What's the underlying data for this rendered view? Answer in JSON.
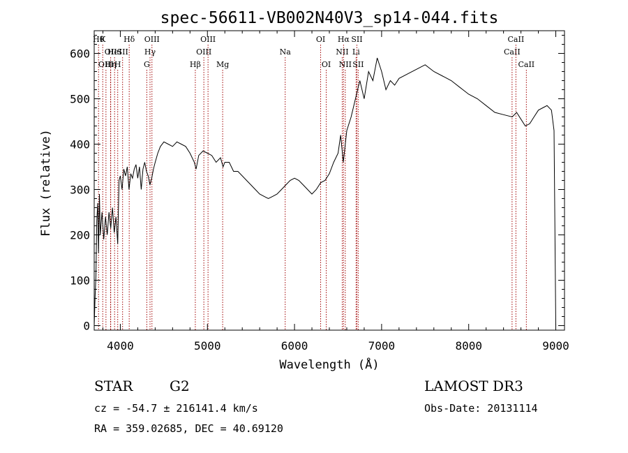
{
  "chart_data": {
    "type": "line",
    "title": "spec-56611-VB002N40V3_sp14-044.fits",
    "xlabel": "Wavelength (Å)",
    "ylabel": "Flux (relative)",
    "xlim": [
      3700,
      9100
    ],
    "ylim": [
      -10,
      650
    ],
    "xticks": [
      4000,
      5000,
      6000,
      7000,
      8000,
      9000
    ],
    "yticks": [
      0,
      100,
      200,
      300,
      400,
      500,
      600
    ],
    "grid": false,
    "series": [
      {
        "points": [
          [
            3700,
            0
          ],
          [
            3710,
            60
          ],
          [
            3720,
            110
          ],
          [
            3730,
            230
          ],
          [
            3740,
            270
          ],
          [
            3750,
            160
          ],
          [
            3760,
            290
          ],
          [
            3770,
            200
          ],
          [
            3790,
            250
          ],
          [
            3810,
            190
          ],
          [
            3830,
            240
          ],
          [
            3850,
            200
          ],
          [
            3870,
            250
          ],
          [
            3890,
            215
          ],
          [
            3910,
            260
          ],
          [
            3930,
            205
          ],
          [
            3950,
            240
          ],
          [
            3970,
            180
          ],
          [
            3985,
            320
          ],
          [
            4000,
            330
          ],
          [
            4020,
            300
          ],
          [
            4040,
            345
          ],
          [
            4060,
            330
          ],
          [
            4080,
            350
          ],
          [
            4100,
            300
          ],
          [
            4120,
            335
          ],
          [
            4140,
            325
          ],
          [
            4160,
            345
          ],
          [
            4180,
            355
          ],
          [
            4200,
            325
          ],
          [
            4220,
            350
          ],
          [
            4240,
            300
          ],
          [
            4260,
            345
          ],
          [
            4280,
            360
          ],
          [
            4300,
            340
          ],
          [
            4320,
            330
          ],
          [
            4340,
            310
          ],
          [
            4360,
            325
          ],
          [
            4380,
            345
          ],
          [
            4400,
            360
          ],
          [
            4430,
            380
          ],
          [
            4460,
            395
          ],
          [
            4500,
            405
          ],
          [
            4550,
            400
          ],
          [
            4600,
            395
          ],
          [
            4650,
            405
          ],
          [
            4700,
            400
          ],
          [
            4750,
            395
          ],
          [
            4800,
            380
          ],
          [
            4850,
            360
          ],
          [
            4870,
            345
          ],
          [
            4900,
            375
          ],
          [
            4950,
            385
          ],
          [
            5000,
            380
          ],
          [
            5050,
            375
          ],
          [
            5100,
            360
          ],
          [
            5150,
            370
          ],
          [
            5180,
            350
          ],
          [
            5200,
            360
          ],
          [
            5250,
            360
          ],
          [
            5300,
            340
          ],
          [
            5350,
            340
          ],
          [
            5400,
            330
          ],
          [
            5450,
            320
          ],
          [
            5500,
            310
          ],
          [
            5550,
            300
          ],
          [
            5600,
            290
          ],
          [
            5650,
            285
          ],
          [
            5700,
            280
          ],
          [
            5750,
            285
          ],
          [
            5800,
            290
          ],
          [
            5850,
            300
          ],
          [
            5900,
            310
          ],
          [
            5950,
            320
          ],
          [
            6000,
            325
          ],
          [
            6050,
            320
          ],
          [
            6100,
            310
          ],
          [
            6150,
            300
          ],
          [
            6200,
            290
          ],
          [
            6250,
            300
          ],
          [
            6300,
            315
          ],
          [
            6350,
            320
          ],
          [
            6400,
            335
          ],
          [
            6450,
            360
          ],
          [
            6500,
            380
          ],
          [
            6530,
            420
          ],
          [
            6560,
            360
          ],
          [
            6600,
            430
          ],
          [
            6650,
            460
          ],
          [
            6700,
            500
          ],
          [
            6750,
            540
          ],
          [
            6800,
            500
          ],
          [
            6850,
            560
          ],
          [
            6900,
            540
          ],
          [
            6950,
            590
          ],
          [
            7000,
            560
          ],
          [
            7050,
            520
          ],
          [
            7100,
            540
          ],
          [
            7150,
            530
          ],
          [
            7200,
            545
          ],
          [
            7300,
            555
          ],
          [
            7400,
            565
          ],
          [
            7500,
            575
          ],
          [
            7600,
            560
          ],
          [
            7700,
            550
          ],
          [
            7800,
            540
          ],
          [
            7900,
            525
          ],
          [
            8000,
            510
          ],
          [
            8100,
            500
          ],
          [
            8200,
            485
          ],
          [
            8300,
            470
          ],
          [
            8400,
            465
          ],
          [
            8500,
            460
          ],
          [
            8550,
            470
          ],
          [
            8600,
            455
          ],
          [
            8650,
            440
          ],
          [
            8700,
            445
          ],
          [
            8750,
            460
          ],
          [
            8800,
            475
          ],
          [
            8850,
            480
          ],
          [
            8900,
            485
          ],
          [
            8950,
            475
          ],
          [
            8980,
            430
          ],
          [
            9000,
            0
          ]
        ]
      }
    ],
    "line_markers": [
      {
        "wave": 3750,
        "label": "Hθ",
        "row": 0
      },
      {
        "wave": 3798,
        "label": "K",
        "row": 0
      },
      {
        "wave": 3889,
        "label": "OII",
        "row": 1
      },
      {
        "wave": 3934,
        "label": "HeI",
        "row": 1
      },
      {
        "wave": 3970,
        "label": "H",
        "row": 2
      },
      {
        "wave": 3835,
        "label": "OIII",
        "row": 2
      },
      {
        "wave": 3889,
        "label": "Hη",
        "row": 2
      },
      {
        "wave": 4026,
        "label": "SII",
        "row": 1
      },
      {
        "wave": 4102,
        "label": "Hδ",
        "row": 0
      },
      {
        "wave": 4304,
        "label": "G",
        "row": 2
      },
      {
        "wave": 4341,
        "label": "Hγ",
        "row": 1
      },
      {
        "wave": 4363,
        "label": "OIII",
        "row": 0
      },
      {
        "wave": 4861,
        "label": "Hβ",
        "row": 2
      },
      {
        "wave": 4959,
        "label": "OIII",
        "row": 1
      },
      {
        "wave": 5007,
        "label": "OIII",
        "row": 0
      },
      {
        "wave": 5175,
        "label": "Mg",
        "row": 2
      },
      {
        "wave": 5893,
        "label": "Na",
        "row": 1
      },
      {
        "wave": 6300,
        "label": "OI",
        "row": 0
      },
      {
        "wave": 6364,
        "label": "OI",
        "row": 2
      },
      {
        "wave": 6548,
        "label": "NII",
        "row": 1
      },
      {
        "wave": 6563,
        "label": "Hα",
        "row": 0
      },
      {
        "wave": 6583,
        "label": "NII",
        "row": 2
      },
      {
        "wave": 6707,
        "label": "Li",
        "row": 1
      },
      {
        "wave": 6716,
        "label": "SII",
        "row": 0
      },
      {
        "wave": 6731,
        "label": "SII",
        "row": 2
      },
      {
        "wave": 8498,
        "label": "CaII",
        "row": 1
      },
      {
        "wave": 8542,
        "label": "CaII",
        "row": 0
      },
      {
        "wave": 8662,
        "label": "CaII",
        "row": 2
      }
    ]
  },
  "info": {
    "object_class": "STAR",
    "subclass": "G2",
    "survey": "LAMOST DR3",
    "redshift": "cz = -54.7 ± 216141.4 km/s",
    "obs_date": "Obs-Date: 20131114",
    "coords": "RA = 359.02685, DEC =  40.69120"
  }
}
